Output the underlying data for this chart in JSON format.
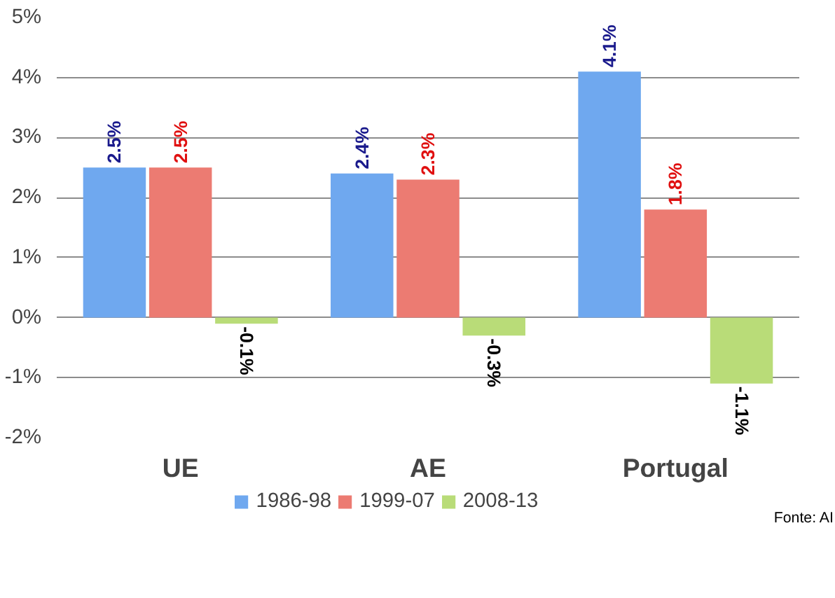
{
  "chart_data": {
    "type": "bar",
    "categories": [
      "UE",
      "AE",
      "Portugal"
    ],
    "series": [
      {
        "name": "1986-98",
        "color": "#6fa8ef",
        "values": [
          2.5,
          2.4,
          4.1
        ],
        "value_labels": [
          "2.5%",
          "2.4%",
          "4.1%"
        ]
      },
      {
        "name": "1999-07",
        "color": "#ec7b72",
        "values": [
          2.5,
          2.3,
          1.8
        ],
        "value_labels": [
          "2.5%",
          "2.3%",
          "1.8%"
        ]
      },
      {
        "name": "2008-13",
        "color": "#b9dc78",
        "values": [
          -0.1,
          -0.3,
          -1.1
        ],
        "value_labels": [
          "-0.1%",
          "-0.3%",
          "-1.1%"
        ]
      }
    ],
    "ylim": [
      -2,
      5
    ],
    "yticks": [
      {
        "value": -2,
        "label": "-2%"
      },
      {
        "value": -1,
        "label": "-1%"
      },
      {
        "value": 0,
        "label": "0%"
      },
      {
        "value": 1,
        "label": "1%"
      },
      {
        "value": 2,
        "label": "2%"
      },
      {
        "value": 3,
        "label": "3%"
      },
      {
        "value": 4,
        "label": "4%"
      },
      {
        "value": 5,
        "label": "5%"
      }
    ],
    "grid": "y",
    "legend": "bottom",
    "annotations": [
      "Fonte: AI"
    ]
  }
}
